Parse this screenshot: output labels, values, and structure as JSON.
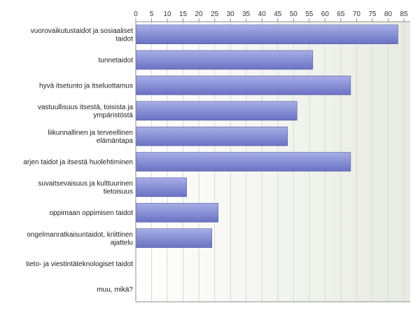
{
  "chart_data": {
    "type": "bar",
    "orientation": "horizontal",
    "title": "",
    "xlabel": "",
    "ylabel": "",
    "categories": [
      [
        "vuorovaikutustaidot ja sosiaaliset",
        "taidot"
      ],
      [
        "tunnetaidot"
      ],
      [
        "hyvä itsetunto ja itseluottamus"
      ],
      [
        "vastuullisuus itsestä, toisista ja",
        "ympäristöstä"
      ],
      [
        "liikunnallinen ja terveellinen",
        "elämäntapa"
      ],
      [
        "arjen taidot ja itsestä huolehtiminen"
      ],
      [
        "suvaitsevaisuus ja kulttuurinen",
        "tietoisuus"
      ],
      [
        "oppimaan oppimisen taidot"
      ],
      [
        "ongelmanratkaisuntaidot, kriittinen",
        "ajattelu"
      ],
      [
        "tieto- ja viestintäteknologiset taidot"
      ],
      [
        "muu, mikä?"
      ]
    ],
    "values": [
      83,
      56,
      68,
      51,
      48,
      68,
      16,
      26,
      24,
      0,
      0
    ],
    "xlim": [
      0,
      87
    ],
    "xticks": [
      0,
      5,
      10,
      15,
      20,
      25,
      30,
      35,
      40,
      45,
      50,
      55,
      60,
      65,
      70,
      75,
      80,
      85
    ],
    "axis_position": "top",
    "grid": true,
    "colors": {
      "bar_top": "#a7aee6",
      "bar_bottom": "#6a72c4",
      "bar_stroke": "#555c9e",
      "plot_bg_left": "#ffffff",
      "plot_bg_right": "#e8ebe2",
      "grid": "#d7dacf",
      "axis": "#8f8f8f"
    }
  }
}
